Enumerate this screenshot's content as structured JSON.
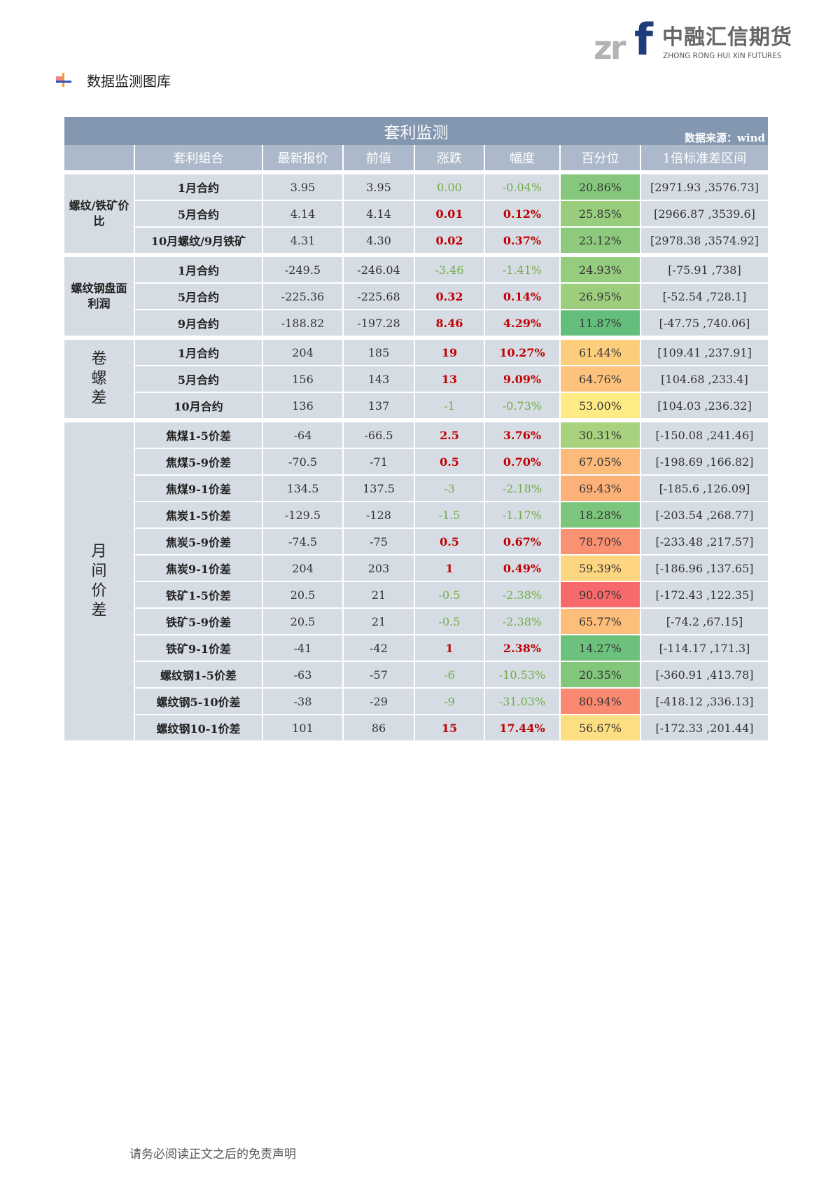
{
  "logo": {
    "mark": "zrf",
    "cn": "中融汇信期货",
    "en": "ZHONG RONG HUI XIN FUTURES",
    "color_blue": "#1f3d7a",
    "color_gray": "#b3b3b3"
  },
  "section_title": "数据监测图库",
  "table": {
    "title": "套利监测",
    "source": "数据来源：wind",
    "headers": [
      "",
      "套利组合",
      "最新报价",
      "前值",
      "涨跌",
      "幅度",
      "百分位",
      "1倍标准差区间"
    ],
    "colors": {
      "up": "#c00000",
      "down": "#70ad47",
      "pct_low": "#63be7b",
      "pct_mid": "#ffeb84",
      "pct_high": "#f8696b"
    },
    "groups": [
      {
        "label": "螺纹/铁矿价比",
        "rows": [
          {
            "name": "1月合约",
            "latest": "3.95",
            "prev": "3.95",
            "change": "0.00",
            "pct": "-0.04%",
            "percentile": "20.86%",
            "range": "[2971.93 ,3576.73]",
            "dir": "down"
          },
          {
            "name": "5月合约",
            "latest": "4.14",
            "prev": "4.14",
            "change": "0.01",
            "pct": "0.12%",
            "percentile": "25.85%",
            "range": "[2966.87 ,3539.6]",
            "dir": "up"
          },
          {
            "name": "10月螺纹/9月铁矿",
            "latest": "4.31",
            "prev": "4.30",
            "change": "0.02",
            "pct": "0.37%",
            "percentile": "23.12%",
            "range": "[2978.38 ,3574.92]",
            "dir": "up"
          }
        ]
      },
      {
        "label": "螺纹钢盘面利润",
        "rows": [
          {
            "name": "1月合约",
            "latest": "-249.5",
            "prev": "-246.04",
            "change": "-3.46",
            "pct": "-1.41%",
            "percentile": "24.93%",
            "range": "[-75.91 ,738]",
            "dir": "down"
          },
          {
            "name": "5月合约",
            "latest": "-225.36",
            "prev": "-225.68",
            "change": "0.32",
            "pct": "0.14%",
            "percentile": "26.95%",
            "range": "[-52.54 ,728.1]",
            "dir": "up"
          },
          {
            "name": "9月合约",
            "latest": "-188.82",
            "prev": "-197.28",
            "change": "8.46",
            "pct": "4.29%",
            "percentile": "11.87%",
            "range": "[-47.75 ,740.06]",
            "dir": "up"
          }
        ]
      },
      {
        "label": "卷螺差",
        "vertical": true,
        "rows": [
          {
            "name": "1月合约",
            "latest": "204",
            "prev": "185",
            "change": "19",
            "pct": "10.27%",
            "percentile": "61.44%",
            "range": "[109.41 ,237.91]",
            "dir": "up"
          },
          {
            "name": "5月合约",
            "latest": "156",
            "prev": "143",
            "change": "13",
            "pct": "9.09%",
            "percentile": "64.76%",
            "range": "[104.68 ,233.4]",
            "dir": "up"
          },
          {
            "name": "10月合约",
            "latest": "136",
            "prev": "137",
            "change": "-1",
            "pct": "-0.73%",
            "percentile": "53.00%",
            "range": "[104.03 ,236.32]",
            "dir": "down"
          }
        ]
      },
      {
        "label": "月间价差",
        "vertical": true,
        "rows": [
          {
            "name": "焦煤1-5价差",
            "latest": "-64",
            "prev": "-66.5",
            "change": "2.5",
            "pct": "3.76%",
            "percentile": "30.31%",
            "range": "[-150.08 ,241.46]",
            "dir": "up"
          },
          {
            "name": "焦煤5-9价差",
            "latest": "-70.5",
            "prev": "-71",
            "change": "0.5",
            "pct": "0.70%",
            "percentile": "67.05%",
            "range": "[-198.69 ,166.82]",
            "dir": "up"
          },
          {
            "name": "焦煤9-1价差",
            "latest": "134.5",
            "prev": "137.5",
            "change": "-3",
            "pct": "-2.18%",
            "percentile": "69.43%",
            "range": "[-185.6 ,126.09]",
            "dir": "down"
          },
          {
            "name": "焦炭1-5价差",
            "latest": "-129.5",
            "prev": "-128",
            "change": "-1.5",
            "pct": "-1.17%",
            "percentile": "18.28%",
            "range": "[-203.54 ,268.77]",
            "dir": "down"
          },
          {
            "name": "焦炭5-9价差",
            "latest": "-74.5",
            "prev": "-75",
            "change": "0.5",
            "pct": "0.67%",
            "percentile": "78.70%",
            "range": "[-233.48 ,217.57]",
            "dir": "up"
          },
          {
            "name": "焦炭9-1价差",
            "latest": "204",
            "prev": "203",
            "change": "1",
            "pct": "0.49%",
            "percentile": "59.39%",
            "range": "[-186.96 ,137.65]",
            "dir": "up"
          },
          {
            "name": "铁矿1-5价差",
            "latest": "20.5",
            "prev": "21",
            "change": "-0.5",
            "pct": "-2.38%",
            "percentile": "90.07%",
            "range": "[-172.43 ,122.35]",
            "dir": "down"
          },
          {
            "name": "铁矿5-9价差",
            "latest": "20.5",
            "prev": "21",
            "change": "-0.5",
            "pct": "-2.38%",
            "percentile": "65.77%",
            "range": "[-74.2 ,67.15]",
            "dir": "down"
          },
          {
            "name": "铁矿9-1价差",
            "latest": "-41",
            "prev": "-42",
            "change": "1",
            "pct": "2.38%",
            "percentile": "14.27%",
            "range": "[-114.17 ,171.3]",
            "dir": "up"
          },
          {
            "name": "螺纹钢1-5价差",
            "latest": "-63",
            "prev": "-57",
            "change": "-6",
            "pct": "-10.53%",
            "percentile": "20.35%",
            "range": "[-360.91 ,413.78]",
            "dir": "down"
          },
          {
            "name": "螺纹钢5-10价差",
            "latest": "-38",
            "prev": "-29",
            "change": "-9",
            "pct": "-31.03%",
            "percentile": "80.94%",
            "range": "[-418.12 ,336.13]",
            "dir": "down"
          },
          {
            "name": "螺纹钢10-1价差",
            "latest": "101",
            "prev": "86",
            "change": "15",
            "pct": "17.44%",
            "percentile": "56.67%",
            "range": "[-172.33 ,201.44]",
            "dir": "up"
          }
        ]
      }
    ]
  },
  "footer": "请务必阅读正文之后的免责声明"
}
